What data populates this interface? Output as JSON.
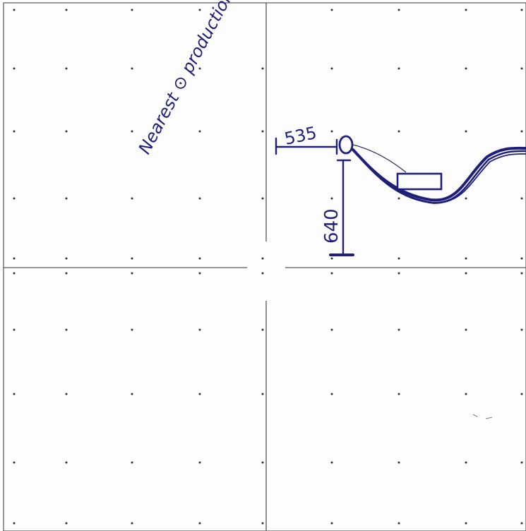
{
  "sheet": {
    "annotation": "Nearest ⊙ production",
    "dimension_horizontal": "535",
    "dimension_vertical": "640"
  },
  "colors": {
    "paper": "#fdfdfd",
    "grid_line": "#555555",
    "grid_dot": "#333333",
    "ink": "#1f1f7a"
  }
}
